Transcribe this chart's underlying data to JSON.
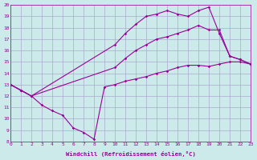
{
  "xlabel": "Windchill (Refroidissement éolien,°C)",
  "bg_color": "#cceaea",
  "grid_color": "#aaaacc",
  "line_color": "#990099",
  "xlim": [
    0,
    23
  ],
  "ylim": [
    8,
    20
  ],
  "xticks": [
    0,
    1,
    2,
    3,
    4,
    5,
    6,
    7,
    8,
    9,
    10,
    11,
    12,
    13,
    14,
    15,
    16,
    17,
    18,
    19,
    20,
    21,
    22,
    23
  ],
  "yticks": [
    8,
    9,
    10,
    11,
    12,
    13,
    14,
    15,
    16,
    17,
    18,
    19,
    20
  ],
  "line1_x": [
    0,
    1,
    2,
    3,
    4,
    5,
    6,
    7,
    8,
    9,
    10,
    11,
    12,
    13,
    14,
    15,
    16,
    17,
    18,
    19,
    20,
    21,
    22,
    23
  ],
  "line1_y": [
    13,
    12.5,
    12,
    11.2,
    10.7,
    10.3,
    9.2,
    8.8,
    8.2,
    12.8,
    13.0,
    13.3,
    13.5,
    13.7,
    14.0,
    14.2,
    14.5,
    14.7,
    14.7,
    14.6,
    14.8,
    15.0,
    15.0,
    14.8
  ],
  "line2_x": [
    0,
    1,
    2,
    10,
    11,
    12,
    13,
    14,
    15,
    16,
    17,
    18,
    19,
    20,
    21,
    22,
    23
  ],
  "line2_y": [
    13,
    12.5,
    12,
    14.5,
    15.3,
    16.0,
    16.5,
    17.0,
    17.2,
    17.5,
    17.8,
    18.2,
    17.8,
    17.8,
    15.5,
    15.2,
    14.8
  ],
  "line3_x": [
    0,
    1,
    2,
    10,
    11,
    12,
    13,
    14,
    15,
    16,
    17,
    18,
    19,
    20,
    21,
    22,
    23
  ],
  "line3_y": [
    13,
    12.5,
    12,
    16.5,
    17.5,
    18.3,
    19.0,
    19.2,
    19.5,
    19.2,
    19.0,
    19.5,
    19.8,
    17.5,
    15.5,
    15.2,
    14.8
  ]
}
